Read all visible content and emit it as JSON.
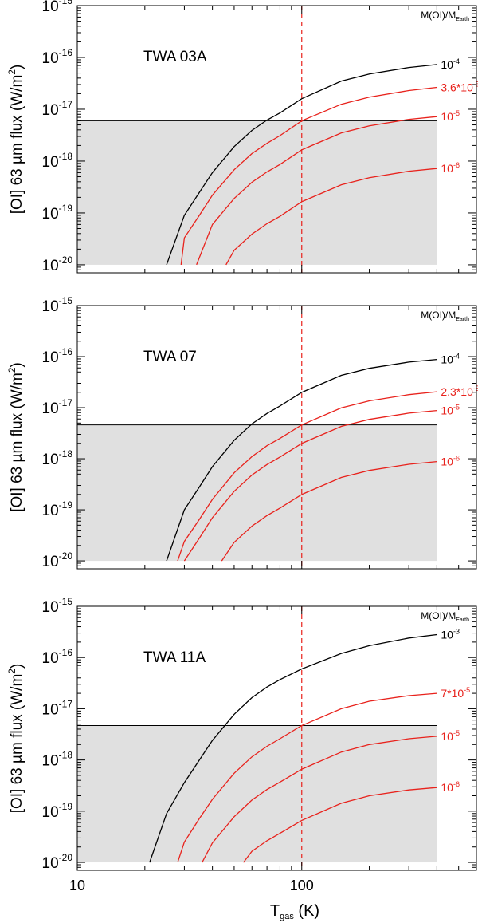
{
  "chart_data": [
    {
      "type": "line",
      "title": "TWA 03A",
      "xlabel": "",
      "ylabel": "[OI] 63 µm flux (W/m²)",
      "xscale": "log",
      "yscale": "log",
      "xlim": [
        10,
        600
      ],
      "ylim": [
        7e-21,
        1e-15
      ],
      "legend_title": "M(OI)/M_Earth",
      "detection_limit": 6e-18,
      "shaded_region": {
        "x": [
          10,
          400
        ],
        "y": [
          1e-20,
          6e-18
        ]
      },
      "vline_x": 100,
      "series": [
        {
          "name": "10^-4",
          "color": "#000000",
          "x": [
            25,
            30,
            35,
            40,
            50,
            60,
            70,
            80,
            100,
            150,
            200,
            300,
            400
          ],
          "y": [
            1e-20,
            9e-20,
            2.5e-19,
            6e-19,
            1.9e-18,
            3.9e-18,
            6.2e-18,
            8.5e-18,
            1.6e-17,
            3.5e-17,
            4.8e-17,
            6.4e-17,
            7.3e-17
          ]
        },
        {
          "name": "3.6*10^-5",
          "color": "#e8221c",
          "x": [
            29,
            30,
            35,
            40,
            50,
            60,
            70,
            80,
            100,
            150,
            200,
            300,
            400
          ],
          "y": [
            1e-20,
            3.3e-20,
            9e-20,
            2.2e-19,
            6.8e-19,
            1.4e-18,
            2.2e-18,
            3.1e-18,
            6e-18,
            1.25e-17,
            1.72e-17,
            2.3e-17,
            2.65e-17
          ]
        },
        {
          "name": "10^-5",
          "color": "#e8221c",
          "x": [
            34,
            40,
            50,
            60,
            70,
            80,
            100,
            150,
            200,
            300,
            400
          ],
          "y": [
            1e-20,
            6e-20,
            1.9e-19,
            3.9e-19,
            6.2e-19,
            8.6e-19,
            1.65e-18,
            3.5e-18,
            4.8e-18,
            6.4e-18,
            7.2e-18
          ]
        },
        {
          "name": "10^-6",
          "color": "#e8221c",
          "x": [
            46,
            50,
            60,
            70,
            80,
            100,
            150,
            200,
            300,
            400
          ],
          "y": [
            1e-20,
            1.9e-20,
            3.9e-20,
            6.2e-20,
            8.6e-20,
            1.65e-19,
            3.5e-19,
            4.8e-19,
            6.4e-19,
            7.2e-19
          ]
        }
      ],
      "panel_label": "TWA 03A"
    },
    {
      "type": "line",
      "title": "TWA 07",
      "xlabel": "",
      "ylabel": "[OI] 63 µm flux (W/m²)",
      "xscale": "log",
      "yscale": "log",
      "xlim": [
        10,
        600
      ],
      "ylim": [
        7e-21,
        1e-15
      ],
      "legend_title": "M(OI)/M_Earth",
      "detection_limit": 4.6e-18,
      "shaded_region": {
        "x": [
          10,
          400
        ],
        "y": [
          1e-20,
          4.6e-18
        ]
      },
      "vline_x": 100,
      "series": [
        {
          "name": "10^-4",
          "color": "#000000",
          "x": [
            25,
            30,
            35,
            40,
            50,
            60,
            70,
            80,
            100,
            150,
            200,
            300,
            400
          ],
          "y": [
            1e-20,
            1e-19,
            2.8e-19,
            7e-19,
            2.3e-18,
            4.8e-18,
            7.7e-18,
            1.08e-17,
            2e-17,
            4.3e-17,
            5.9e-17,
            7.8e-17,
            8.8e-17
          ]
        },
        {
          "name": "2.3*10^-5",
          "color": "#e8221c",
          "x": [
            28,
            30,
            35,
            40,
            50,
            60,
            70,
            80,
            100,
            150,
            200,
            300,
            400
          ],
          "y": [
            1e-20,
            2.4e-20,
            6.5e-20,
            1.6e-19,
            5.3e-19,
            1.1e-18,
            1.8e-18,
            2.5e-18,
            4.6e-18,
            9.9e-18,
            1.36e-17,
            1.8e-17,
            2.05e-17
          ]
        },
        {
          "name": "10^-5",
          "color": "#e8221c",
          "x": [
            30,
            35,
            40,
            50,
            60,
            70,
            80,
            100,
            150,
            200,
            300,
            400
          ],
          "y": [
            1e-20,
            2.8e-20,
            7e-20,
            2.3e-19,
            4.8e-19,
            7.7e-19,
            1.08e-18,
            2e-18,
            4.3e-18,
            5.9e-18,
            7.8e-18,
            8.8e-18
          ]
        },
        {
          "name": "10^-6",
          "color": "#e8221c",
          "x": [
            44,
            50,
            60,
            70,
            80,
            100,
            150,
            200,
            300,
            400
          ],
          "y": [
            1e-20,
            2.3e-20,
            4.8e-20,
            7.7e-20,
            1.08e-19,
            2e-19,
            4.3e-19,
            5.9e-19,
            7.8e-19,
            8.8e-19
          ]
        }
      ],
      "panel_label": "TWA 07"
    },
    {
      "type": "line",
      "title": "TWA 11A",
      "xlabel": "T_gas (K)",
      "ylabel": "[OI] 63 µm flux (W/m²)",
      "xscale": "log",
      "yscale": "log",
      "xlim": [
        10,
        600
      ],
      "ylim": [
        7e-21,
        1e-15
      ],
      "legend_title": "M(OI)/M_Earth",
      "detection_limit": 4.7e-18,
      "shaded_region": {
        "x": [
          10,
          400
        ],
        "y": [
          1e-20,
          4.7e-18
        ]
      },
      "vline_x": 100,
      "series": [
        {
          "name": "10^-3",
          "color": "#000000",
          "x": [
            21,
            25,
            30,
            35,
            40,
            50,
            60,
            70,
            80,
            100,
            150,
            200,
            300,
            400
          ],
          "y": [
            1e-20,
            9e-20,
            3.6e-19,
            1e-18,
            2.4e-18,
            7.8e-18,
            1.65e-17,
            2.65e-17,
            3.7e-17,
            6e-17,
            1.2e-16,
            1.7e-16,
            2.4e-16,
            2.8e-16
          ]
        },
        {
          "name": "7*10^-5",
          "color": "#e8221c",
          "x": [
            28,
            30,
            35,
            40,
            50,
            60,
            70,
            80,
            100,
            150,
            200,
            300,
            400
          ],
          "y": [
            1e-20,
            2.5e-20,
            7.2e-20,
            1.7e-19,
            5.5e-19,
            1.15e-18,
            1.85e-18,
            2.6e-18,
            4.7e-18,
            1e-17,
            1.4e-17,
            1.8e-17,
            2e-17
          ]
        },
        {
          "name": "10^-5",
          "color": "#e8221c",
          "x": [
            36,
            40,
            50,
            60,
            70,
            80,
            100,
            150,
            200,
            300,
            400
          ],
          "y": [
            1e-20,
            2.4e-20,
            7.8e-20,
            1.65e-19,
            2.65e-19,
            3.7e-19,
            6.6e-19,
            1.43e-18,
            2e-18,
            2.6e-18,
            2.9e-18
          ]
        },
        {
          "name": "10^-6",
          "color": "#e8221c",
          "x": [
            55,
            60,
            70,
            80,
            100,
            150,
            200,
            300,
            400
          ],
          "y": [
            1e-20,
            1.65e-20,
            2.65e-20,
            3.7e-20,
            6.6e-20,
            1.43e-19,
            2e-19,
            2.6e-19,
            2.9e-19
          ]
        }
      ],
      "panel_label": "TWA 11A"
    }
  ],
  "x_tick_labels": [
    "10",
    "100"
  ],
  "y_tick_mantissa": "10",
  "y_tick_exponents": [
    "-20",
    "-19",
    "-18",
    "-17",
    "-16",
    "-15"
  ],
  "ylabel_text": "[OI] 63 µm flux (W/m",
  "ylabel_sup": "2",
  "ylabel_tail": ")",
  "xlabel_T": "T",
  "xlabel_sub": "gas",
  "xlabel_tail": " (K)",
  "legend_head": "M(OI)/M",
  "legend_sub": "Earth",
  "colors": {
    "black": "#000000",
    "red": "#e8221c",
    "shade": "#e0e0e0"
  }
}
